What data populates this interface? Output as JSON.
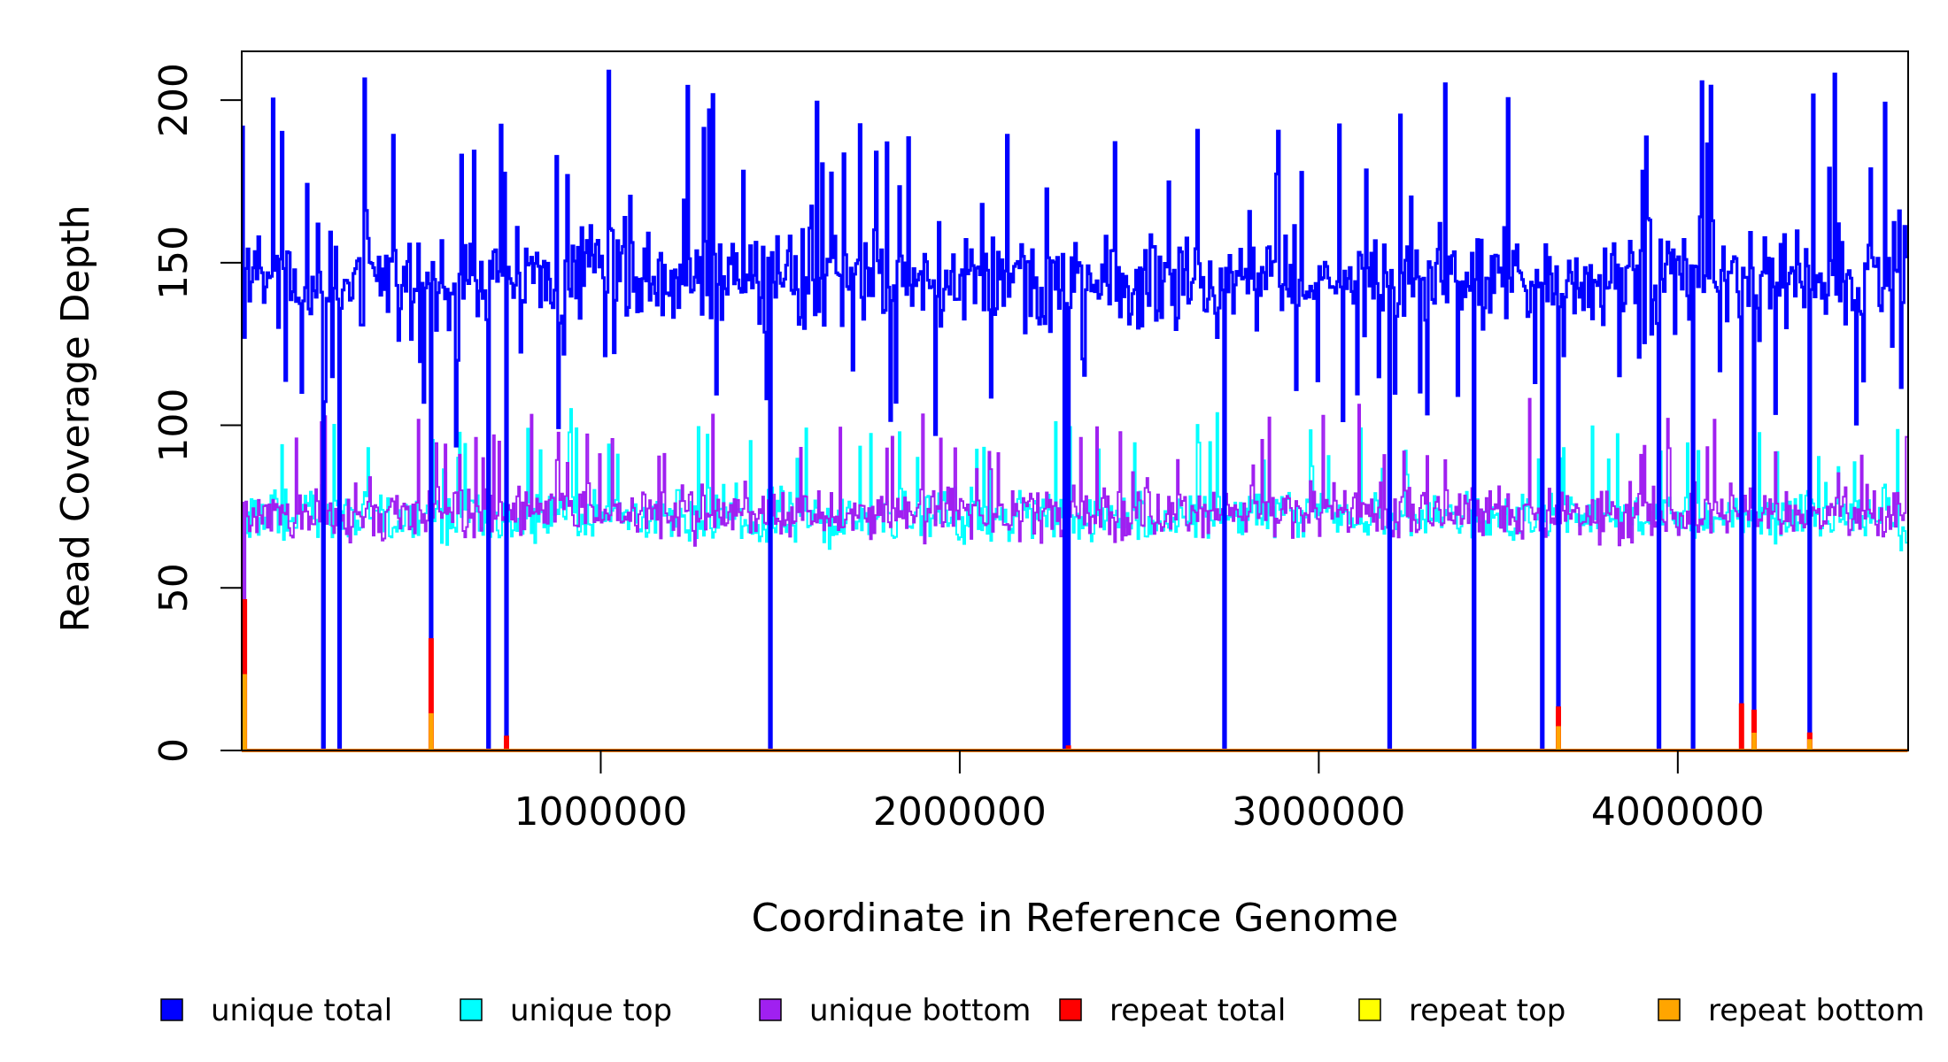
{
  "chart_data": {
    "type": "line",
    "title": "",
    "xlabel": "Coordinate in Reference Genome",
    "ylabel": "Read Coverage Depth",
    "xlim": [
      0,
      4641652
    ],
    "ylim": [
      0,
      215
    ],
    "x_ticks": [
      1000000,
      2000000,
      3000000,
      4000000
    ],
    "x_tick_labels": [
      "1000000",
      "2000000",
      "3000000",
      "4000000"
    ],
    "y_ticks": [
      0,
      50,
      100,
      150,
      200
    ],
    "y_tick_labels": [
      "0",
      "50",
      "100",
      "150",
      "200"
    ],
    "bin_size": 5000,
    "series_baselines": {
      "unique total": 145,
      "unique top": 72,
      "unique bottom": 73,
      "repeat total": 0,
      "repeat top": 0,
      "repeat bottom": 0
    },
    "series_spread": {
      "unique total": 22,
      "unique top": 12,
      "unique bottom": 12
    },
    "coverage_gaps": [
      {
        "x": 5000,
        "unique_total": 127,
        "repeat_total": 46,
        "repeat_bottom": 23
      },
      {
        "x": 225000,
        "unique_total": 0
      },
      {
        "x": 270000,
        "unique_total": 0
      },
      {
        "x": 525000,
        "unique_total": 0,
        "repeat_total": 34,
        "repeat_bottom": 11
      },
      {
        "x": 685000,
        "unique_total": 0
      },
      {
        "x": 735000,
        "unique_total": 0,
        "repeat_total": 4
      },
      {
        "x": 1470000,
        "unique_total": 0
      },
      {
        "x": 2290000,
        "unique_total": 0
      },
      {
        "x": 2300000,
        "unique_total": 0,
        "repeat_total": 1
      },
      {
        "x": 2735000,
        "unique_total": 0
      },
      {
        "x": 3195000,
        "unique_total": 0
      },
      {
        "x": 3430000,
        "unique_total": 0
      },
      {
        "x": 3620000,
        "unique_total": 0
      },
      {
        "x": 3665000,
        "unique_total": 0,
        "repeat_total": 13,
        "repeat_bottom": 7
      },
      {
        "x": 3945000,
        "unique_total": 0
      },
      {
        "x": 4040000,
        "unique_total": 0
      },
      {
        "x": 4175000,
        "unique_total": 0,
        "repeat_total": 14
      },
      {
        "x": 4210000,
        "unique_total": 0,
        "repeat_total": 12,
        "repeat_bottom": 5
      },
      {
        "x": 4365000,
        "unique_total": 0,
        "repeat_total": 5,
        "repeat_bottom": 3
      }
    ],
    "series": [
      {
        "name": "unique total",
        "color": "#0000FF"
      },
      {
        "name": "unique top",
        "color": "#00FFFF"
      },
      {
        "name": "unique bottom",
        "color": "#A020F0"
      },
      {
        "name": "repeat total",
        "color": "#FF0000"
      },
      {
        "name": "repeat top",
        "color": "#FFFF00"
      },
      {
        "name": "repeat bottom",
        "color": "#FFA500"
      }
    ],
    "legend": {
      "placement": "bottom",
      "items": [
        {
          "label": "unique total",
          "color": "#0000FF"
        },
        {
          "label": "unique top",
          "color": "#00FFFF"
        },
        {
          "label": "unique bottom",
          "color": "#A020F0"
        },
        {
          "label": "repeat total",
          "color": "#FF0000"
        },
        {
          "label": "repeat top",
          "color": "#FFFF00"
        },
        {
          "label": "repeat bottom",
          "color": "#FFA500"
        }
      ]
    },
    "grid": false
  }
}
